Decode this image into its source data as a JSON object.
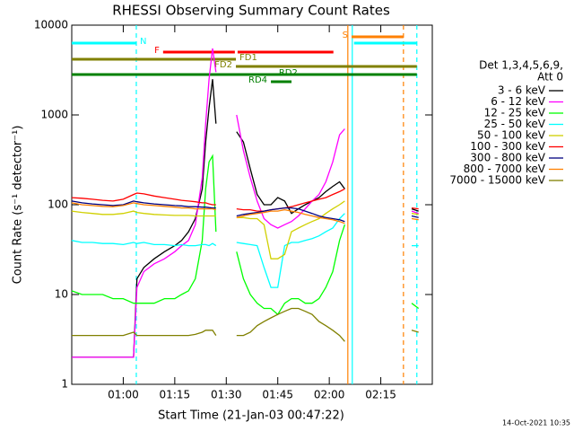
{
  "chart_data": {
    "type": "line",
    "title": "RHESSI Observing Summary Count Rates",
    "xlabel": "Start Time (21-Jan-03 00:47:22)",
    "ylabel": "Count Rate (s⁻¹ detector⁻¹)",
    "footer": "14-Oct-2021 10:35",
    "log_y": true,
    "xlim": [
      45,
      150
    ],
    "ylim": [
      1,
      10000
    ],
    "xticks": [
      {
        "value": 60,
        "label": "01:00"
      },
      {
        "value": 75,
        "label": "01:15"
      },
      {
        "value": 90,
        "label": "01:30"
      },
      {
        "value": 105,
        "label": "01:45"
      },
      {
        "value": 120,
        "label": "02:00"
      },
      {
        "value": 135,
        "label": "02:15"
      }
    ],
    "yticks": [
      1,
      10,
      100,
      1000,
      10000
    ],
    "legend_title": [
      "Det 1,3,4,5,6,9,",
      "Att 0"
    ],
    "x": [
      45,
      48,
      51,
      54,
      57,
      60,
      63,
      64,
      66,
      69,
      72,
      75,
      77,
      79,
      81,
      83,
      84,
      85,
      86,
      87,
      90,
      93,
      95,
      97,
      99,
      101,
      103,
      105,
      107,
      109,
      111,
      113,
      115,
      117,
      119,
      121,
      123,
      124.5,
      135,
      144,
      146
    ],
    "series": [
      {
        "name": "3 - 6 keV",
        "color": "#000000",
        "values": [
          2,
          2,
          2,
          2,
          2,
          2,
          2,
          15,
          20,
          25,
          30,
          35,
          40,
          50,
          70,
          150,
          500,
          1200,
          2500,
          800,
          null,
          650,
          500,
          250,
          130,
          100,
          100,
          120,
          110,
          80,
          90,
          100,
          110,
          120,
          140,
          160,
          180,
          150,
          null,
          90,
          85
        ]
      },
      {
        "name": "6 - 12 keV",
        "color": "#ff00ff",
        "values": [
          2,
          2,
          2,
          2,
          2,
          2,
          2,
          12,
          18,
          22,
          25,
          30,
          35,
          40,
          60,
          200,
          800,
          2500,
          5500,
          3000,
          null,
          1000,
          400,
          200,
          110,
          70,
          60,
          55,
          60,
          65,
          75,
          90,
          110,
          130,
          180,
          300,
          600,
          700,
          null,
          85,
          80
        ]
      },
      {
        "name": "12 - 25 keV",
        "color": "#00ff00",
        "values": [
          11,
          10,
          10,
          10,
          9,
          9,
          8,
          8,
          8,
          8,
          9,
          9,
          10,
          11,
          15,
          40,
          150,
          300,
          350,
          50,
          null,
          30,
          15,
          10,
          8,
          7,
          7,
          6,
          8,
          9,
          9,
          8,
          8,
          9,
          12,
          18,
          40,
          60,
          null,
          8,
          7
        ]
      },
      {
        "name": "25 - 50 keV",
        "color": "#00ffff",
        "values": [
          40,
          38,
          38,
          37,
          37,
          36,
          38,
          37,
          38,
          36,
          36,
          35,
          36,
          35,
          35,
          36,
          36,
          35,
          37,
          35,
          null,
          38,
          37,
          36,
          35,
          20,
          12,
          12,
          35,
          38,
          38,
          40,
          42,
          45,
          50,
          55,
          70,
          80,
          null,
          35,
          35
        ]
      },
      {
        "name": "50 - 100 keV",
        "color": "#d0d000",
        "values": [
          85,
          82,
          80,
          78,
          78,
          80,
          85,
          82,
          80,
          78,
          77,
          76,
          76,
          76,
          75,
          75,
          75,
          75,
          75,
          75,
          null,
          72,
          72,
          70,
          70,
          60,
          25,
          25,
          28,
          50,
          55,
          60,
          65,
          70,
          80,
          90,
          100,
          110,
          null,
          80,
          78
        ]
      },
      {
        "name": "100 - 300 keV",
        "color": "#ff0000",
        "values": [
          120,
          118,
          115,
          112,
          110,
          115,
          130,
          135,
          132,
          125,
          120,
          115,
          112,
          110,
          108,
          105,
          105,
          102,
          100,
          100,
          null,
          90,
          88,
          88,
          85,
          85,
          88,
          90,
          92,
          95,
          100,
          105,
          110,
          115,
          120,
          130,
          140,
          150,
          null,
          92,
          90
        ]
      },
      {
        "name": "300 - 800 keV",
        "color": "#000080",
        "values": [
          110,
          105,
          102,
          100,
          98,
          100,
          110,
          108,
          105,
          102,
          100,
          98,
          97,
          95,
          95,
          94,
          94,
          93,
          92,
          92,
          null,
          75,
          78,
          80,
          82,
          85,
          88,
          90,
          92,
          92,
          90,
          85,
          80,
          75,
          72,
          70,
          68,
          65,
          null,
          75,
          72
        ]
      },
      {
        "name": "800 - 7000 keV",
        "color": "#ff8000",
        "values": [
          105,
          100,
          98,
          96,
          95,
          98,
          105,
          103,
          100,
          98,
          96,
          94,
          92,
          92,
          90,
          90,
          90,
          90,
          90,
          88,
          null,
          72,
          75,
          78,
          80,
          82,
          85,
          85,
          88,
          85,
          82,
          78,
          75,
          72,
          70,
          68,
          65,
          62,
          null,
          70,
          68
        ]
      },
      {
        "name": "7000 - 15000 keV",
        "color": "#808000",
        "values": [
          3.5,
          3.5,
          3.5,
          3.5,
          3.5,
          3.5,
          3.8,
          3.5,
          3.5,
          3.5,
          3.5,
          3.5,
          3.5,
          3.5,
          3.6,
          3.8,
          4,
          4,
          4,
          3.5,
          null,
          3.5,
          3.5,
          3.8,
          4.5,
          5,
          5.5,
          6,
          6.5,
          7,
          7,
          6.5,
          6,
          5,
          4.5,
          4,
          3.5,
          3,
          null,
          4,
          3.8
        ]
      }
    ],
    "flags": [
      {
        "label": "S",
        "color": "#ff8000",
        "segments": [
          [
            126.5,
            141.6
          ]
        ]
      },
      {
        "label": "N",
        "color": "#00ffff",
        "segments": [
          [
            45,
            63.8
          ],
          [
            127.2,
            145.5
          ]
        ]
      },
      {
        "label": "F",
        "color": "#ff0000",
        "segments": [
          [
            71.6,
            92.5
          ],
          [
            93.3,
            121.2
          ]
        ]
      },
      {
        "label": "FD1",
        "color": "#808000",
        "segments": [
          [
            45,
            92.8
          ]
        ]
      },
      {
        "label": "FD2",
        "color": "#808000",
        "segments": [
          [
            92.8,
            145.5
          ]
        ]
      },
      {
        "label": "RD2",
        "color": "#008000",
        "segments": [
          [
            45,
            145.5
          ]
        ]
      },
      {
        "label": "RD4",
        "color": "#008000",
        "segments": [
          [
            103,
            109
          ]
        ]
      }
    ],
    "markers": [
      {
        "value": 63.8,
        "color": "#00ffff",
        "dashed": true
      },
      {
        "value": 125.4,
        "color": "#ff8000",
        "dashed": false
      },
      {
        "value": 126.7,
        "color": "#00ffff",
        "dashed": false
      },
      {
        "value": 141.6,
        "color": "#ff8000",
        "dashed": true
      },
      {
        "value": 145.5,
        "color": "#00ffff",
        "dashed": true
      }
    ]
  }
}
